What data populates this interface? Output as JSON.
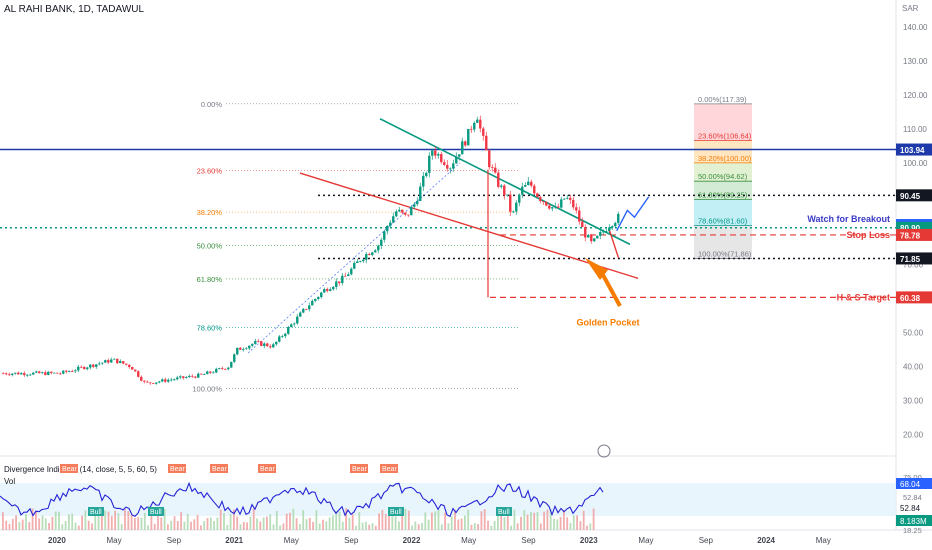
{
  "header": {
    "symbol": "AL RAHI BANK, 1D, TADAWUL",
    "currency": "SAR"
  },
  "chart_data": {
    "type": "candlestick",
    "price_axis": {
      "ylim": [
        16,
        148
      ],
      "ticks": [
        20,
        30,
        40,
        50,
        60,
        70,
        80,
        90,
        100,
        110,
        120,
        130,
        140
      ],
      "tick_labels": [
        "20.00",
        "30.00",
        "40.00",
        "50.00",
        "60.00",
        "70.00",
        "80.00",
        "90.00",
        "100.00",
        "110.00",
        "120.00",
        "130.00",
        "140.00"
      ]
    },
    "time_axis": {
      "labels": [
        "2020",
        "May",
        "Sep",
        "2021",
        "May",
        "Sep",
        "2022",
        "May",
        "Sep",
        "2023",
        "May",
        "Sep",
        "2024",
        "May"
      ]
    },
    "price_path": [
      [
        0,
        38
      ],
      [
        0.15,
        40
      ],
      [
        0.3,
        42
      ],
      [
        0.4,
        40
      ],
      [
        0.48,
        35
      ],
      [
        0.6,
        36
      ],
      [
        0.8,
        37.5
      ],
      [
        0.95,
        40
      ],
      [
        1.0,
        45
      ],
      [
        1.1,
        47
      ],
      [
        1.2,
        46
      ],
      [
        1.3,
        52
      ],
      [
        1.4,
        58
      ],
      [
        1.5,
        63
      ],
      [
        1.6,
        66
      ],
      [
        1.7,
        72
      ],
      [
        1.8,
        76
      ],
      [
        1.85,
        82
      ],
      [
        1.9,
        86
      ],
      [
        1.95,
        84
      ],
      [
        2.0,
        88
      ],
      [
        2.05,
        95
      ],
      [
        2.1,
        104
      ],
      [
        2.2,
        99
      ],
      [
        2.3,
        108
      ],
      [
        2.35,
        115
      ],
      [
        2.37,
        110
      ],
      [
        2.42,
        100
      ],
      [
        2.47,
        94
      ],
      [
        2.52,
        90
      ],
      [
        2.55,
        84
      ],
      [
        2.6,
        92
      ],
      [
        2.65,
        94
      ],
      [
        2.7,
        90
      ],
      [
        2.75,
        88
      ],
      [
        2.8,
        86
      ],
      [
        2.85,
        90
      ],
      [
        2.9,
        87
      ],
      [
        2.95,
        80
      ],
      [
        3.0,
        76
      ],
      [
        3.05,
        79
      ],
      [
        3.1,
        82
      ],
      [
        3.15,
        84
      ]
    ],
    "volume_bars": 180,
    "levels": [
      {
        "price": 103.94,
        "label": "103.94",
        "color": "#1e3aaa",
        "style": "solid"
      },
      {
        "price": 90.45,
        "label": "90.45",
        "color": "#131722",
        "style": "dotted"
      },
      {
        "price": 81.7,
        "label": "81.70",
        "color": "#2962ff",
        "style": "none"
      },
      {
        "price": 80.9,
        "label": "80.90",
        "color": "#089981",
        "style": "dotted"
      },
      {
        "price": 78.78,
        "label": "78.78",
        "color": "#e53935",
        "style": "dashed"
      },
      {
        "price": 71.85,
        "label": "71.85",
        "color": "#131722",
        "style": "dotted"
      },
      {
        "price": 60.38,
        "label": "60.38",
        "color": "#e53935",
        "style": "dashed"
      }
    ],
    "annotations": [
      {
        "text": "Watch for Breakout",
        "price": 83.5,
        "color": "#3a3ac8"
      },
      {
        "text": "Stop Loss",
        "price": 78.78,
        "color": "#e53935"
      },
      {
        "text": "H & S Target",
        "price": 60.38,
        "color": "#e53935"
      },
      {
        "text": "Golden Pocket",
        "price": 53,
        "color": "#f57c00"
      }
    ],
    "fib_left": [
      {
        "label": "0.00%",
        "price": 117.4,
        "color": "#787b86"
      },
      {
        "label": "23.60%",
        "price": 97.8,
        "color": "#e53935"
      },
      {
        "label": "38.20%",
        "price": 85.5,
        "color": "#f57c00"
      },
      {
        "label": "50.00%",
        "price": 75.6,
        "color": "#388e3c"
      },
      {
        "label": "61.80%",
        "price": 65.8,
        "color": "#388e3c"
      },
      {
        "label": "78.60%",
        "price": 51.5,
        "color": "#009688"
      },
      {
        "label": "100.00%",
        "price": 33.5,
        "color": "#787b86"
      }
    ],
    "fib_right": [
      {
        "label": "0.00%(117.39)",
        "price": 117.39,
        "color": "#787b86"
      },
      {
        "label": "23.60%(106.64)",
        "price": 106.64,
        "color": "#e53935"
      },
      {
        "label": "38.20%(100.00)",
        "price": 100.0,
        "color": "#f57c00"
      },
      {
        "label": "50.00%(94.62)",
        "price": 94.62,
        "color": "#388e3c"
      },
      {
        "label": "61.80%(89.25)",
        "price": 89.25,
        "color": "#388e3c"
      },
      {
        "label": "78.60%(81.60)",
        "price": 81.6,
        "color": "#009688"
      },
      {
        "label": "100.00%(71.86)",
        "price": 71.86,
        "color": "#787b86"
      }
    ],
    "indicator": {
      "title": "Divergence Indicator (14, close, 5, 5, 60, 5)",
      "volume_label": "Vol",
      "bear_label": "Bear",
      "bull_label": "Bull",
      "ticks": [
        "52.84",
        "18.25"
      ],
      "top_tick": "75.00",
      "badges": [
        {
          "text": "68.04",
          "color": "#2962ff"
        },
        {
          "text": "52.84",
          "color": "none"
        },
        {
          "text": "8.183M",
          "color": "#089981"
        }
      ]
    }
  }
}
